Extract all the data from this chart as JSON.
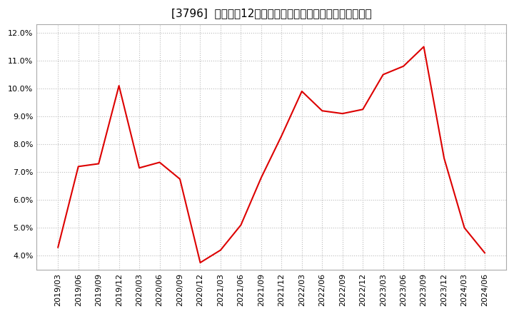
{
  "title": "[3796]  売上高の12か月移動合計の対前年同期増減率の推移",
  "x_labels": [
    "2019/03",
    "2019/06",
    "2019/09",
    "2019/12",
    "2020/03",
    "2020/06",
    "2020/09",
    "2020/12",
    "2021/03",
    "2021/06",
    "2021/09",
    "2021/12",
    "2022/03",
    "2022/06",
    "2022/09",
    "2022/12",
    "2023/03",
    "2023/06",
    "2023/09",
    "2023/12",
    "2024/03",
    "2024/06"
  ],
  "values": [
    4.3,
    7.2,
    7.3,
    10.1,
    7.15,
    7.35,
    6.75,
    3.75,
    4.2,
    5.1,
    6.8,
    8.3,
    9.9,
    9.2,
    9.1,
    9.25,
    10.5,
    10.8,
    11.5,
    7.5,
    5.0,
    4.1
  ],
  "line_color": "#dd0000",
  "background_color": "#ffffff",
  "plot_bg_color": "#ffffff",
  "grid_color": "#bbbbbb",
  "ylim": [
    3.5,
    12.3
  ],
  "yticks": [
    4.0,
    5.0,
    6.0,
    7.0,
    8.0,
    9.0,
    10.0,
    11.0,
    12.0
  ],
  "title_fontsize": 11,
  "tick_fontsize": 8
}
